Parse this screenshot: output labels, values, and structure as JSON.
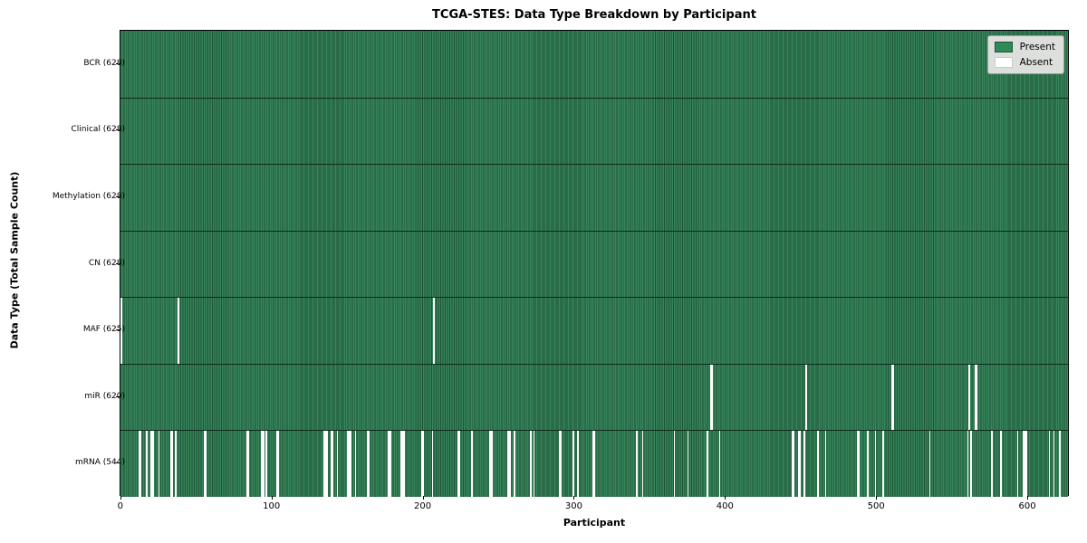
{
  "chart_data": {
    "type": "heatmap",
    "title": "TCGA-STES: Data Type Breakdown by Participant",
    "xlabel": "Participant",
    "ylabel": "Data Type (Total Sample Count)",
    "n_participants": 628,
    "x_ticks": [
      0,
      100,
      200,
      300,
      400,
      500,
      600
    ],
    "xlim": [
      -0.5,
      627.5
    ],
    "grid": false,
    "legend_position": "upper right",
    "legend": [
      {
        "label": "Present",
        "color": "#2e8b57"
      },
      {
        "label": "Absent",
        "color": "#ffffff"
      }
    ],
    "colors": {
      "present_fill": "#2e8b57",
      "present_edge": "#1d5435",
      "absent_fill": "#ffffff",
      "row_separator": "#0e2c1c"
    },
    "rows": [
      {
        "name": "BCR",
        "label": "BCR (628)",
        "present_count": 628,
        "absent_participants": []
      },
      {
        "name": "Clinical",
        "label": "Clinical (628)",
        "present_count": 628,
        "absent_participants": []
      },
      {
        "name": "Methylation",
        "label": "Methylation (628)",
        "present_count": 628,
        "absent_participants": []
      },
      {
        "name": "CN",
        "label": "CN (628)",
        "present_count": 628,
        "absent_participants": []
      },
      {
        "name": "MAF",
        "label": "MAF (625)",
        "present_count": 625,
        "absent_participants": [
          0,
          38,
          207
        ]
      },
      {
        "name": "miR",
        "label": "miR (620)",
        "present_count": 620,
        "absent_participants": [
          390,
          391,
          453,
          510,
          511,
          561,
          565,
          566
        ]
      },
      {
        "name": "mRNA",
        "label": "mRNA (544)",
        "present_count": 544,
        "absent_participants": [
          12,
          13,
          17,
          20,
          21,
          25,
          33,
          34,
          36,
          55,
          56,
          83,
          84,
          93,
          94,
          96,
          103,
          104,
          134,
          135,
          136,
          139,
          140,
          143,
          150,
          151,
          152,
          155,
          163,
          164,
          177,
          178,
          185,
          186,
          187,
          199,
          200,
          206,
          223,
          224,
          232,
          244,
          245,
          256,
          257,
          260,
          271,
          273,
          290,
          291,
          299,
          302,
          312,
          313,
          341,
          345,
          366,
          375,
          388,
          396,
          444,
          445,
          448,
          449,
          452,
          461,
          466,
          487,
          488,
          494,
          499,
          504,
          535,
          560,
          562,
          576,
          582,
          593,
          597,
          598,
          599,
          614,
          617,
          621
        ]
      }
    ]
  }
}
